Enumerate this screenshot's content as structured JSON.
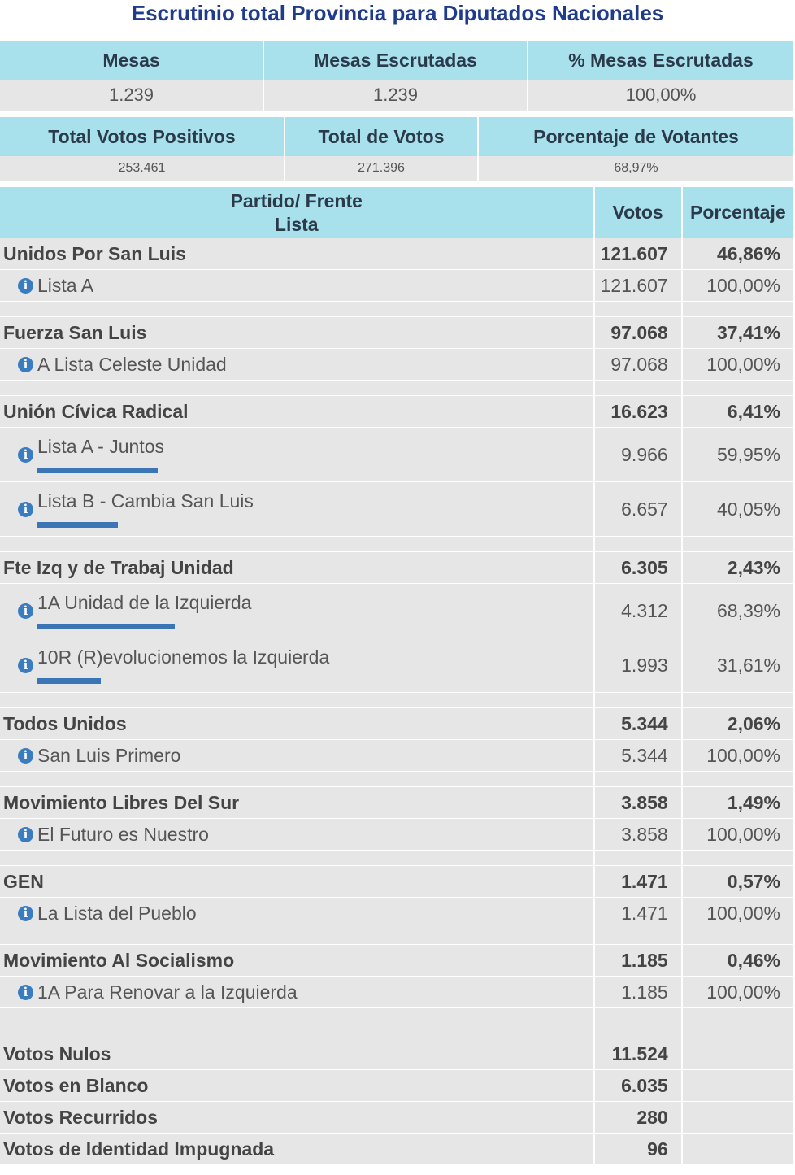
{
  "title": "Escrutinio total Provincia para Diputados Nacionales",
  "summary1": {
    "headers": [
      "Mesas",
      "Mesas Escrutadas",
      "% Mesas Escrutadas"
    ],
    "values": [
      "1.239",
      "1.239",
      "100,00%"
    ]
  },
  "summary2": {
    "headers": [
      "Total Votos Positivos",
      "Total de Votos",
      "Porcentaje de Votantes"
    ],
    "values": [
      "253.461",
      "271.396",
      "68,97%"
    ]
  },
  "table_header": {
    "party_line1": "Partido/ Frente",
    "party_line2": "Lista",
    "votes": "Votos",
    "percent": "Porcentaje"
  },
  "parties": [
    {
      "name": "Unidos Por San Luis",
      "votes": "121.607",
      "pct": "46,86%",
      "lists": [
        {
          "name": "Lista A",
          "votes": "121.607",
          "pct": "100,00%",
          "bar": false
        }
      ]
    },
    {
      "name": "Fuerza San Luis",
      "votes": "97.068",
      "pct": "37,41%",
      "lists": [
        {
          "name": "A Lista Celeste Unidad",
          "votes": "97.068",
          "pct": "100,00%",
          "bar": false
        }
      ]
    },
    {
      "name": "Unión Cívica Radical",
      "votes": "16.623",
      "pct": "6,41%",
      "lists": [
        {
          "name": "Lista A - Juntos",
          "votes": "9.966",
          "pct": "59,95%",
          "bar": true,
          "share": 0.5995
        },
        {
          "name": "Lista B - Cambia San Luis",
          "votes": "6.657",
          "pct": "40,05%",
          "bar": true,
          "share": 0.4005
        }
      ]
    },
    {
      "name": "Fte Izq y de Trabaj Unidad",
      "votes": "6.305",
      "pct": "2,43%",
      "lists": [
        {
          "name": "1A Unidad de la Izquierda",
          "votes": "4.312",
          "pct": "68,39%",
          "bar": true,
          "share": 0.6839
        },
        {
          "name": "10R (R)evolucionemos la Izquierda",
          "votes": "1.993",
          "pct": "31,61%",
          "bar": true,
          "share": 0.3161
        }
      ]
    },
    {
      "name": "Todos Unidos",
      "votes": "5.344",
      "pct": "2,06%",
      "lists": [
        {
          "name": "San Luis Primero",
          "votes": "5.344",
          "pct": "100,00%",
          "bar": false
        }
      ]
    },
    {
      "name": "Movimiento Libres Del Sur",
      "votes": "3.858",
      "pct": "1,49%",
      "lists": [
        {
          "name": "El Futuro es Nuestro",
          "votes": "3.858",
          "pct": "100,00%",
          "bar": false
        }
      ]
    },
    {
      "name": "GEN",
      "votes": "1.471",
      "pct": "0,57%",
      "lists": [
        {
          "name": "La Lista del Pueblo",
          "votes": "1.471",
          "pct": "100,00%",
          "bar": false
        }
      ]
    },
    {
      "name": "Movimiento Al Socialismo",
      "votes": "1.185",
      "pct": "0,46%",
      "lists": [
        {
          "name": "1A Para Renovar a la Izquierda",
          "votes": "1.185",
          "pct": "100,00%",
          "bar": false
        }
      ]
    }
  ],
  "others": [
    {
      "name": "Votos Nulos",
      "votes": "11.524"
    },
    {
      "name": "Votos en Blanco",
      "votes": "6.035"
    },
    {
      "name": "Votos Recurridos",
      "votes": "280"
    },
    {
      "name": "Votos de Identidad Impugnada",
      "votes": "96"
    }
  ],
  "info_icon_glyph": "i",
  "colors": {
    "header_bg": "#a8e0ec",
    "title": "#1f3c8c",
    "row_bg": "#e6e6e6",
    "bar": "#3a76b5",
    "info_icon": "#3a7cc0"
  }
}
